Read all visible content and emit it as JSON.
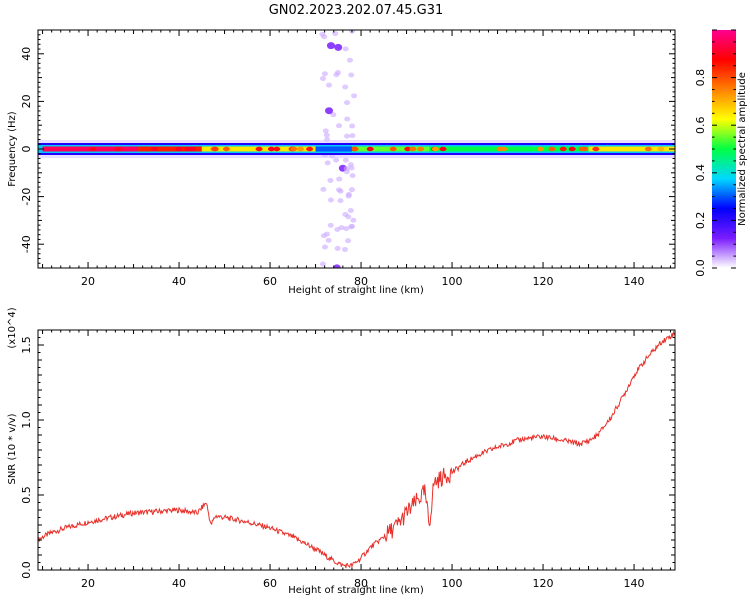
{
  "title": "GN02.2023.202.07.45.G31",
  "chart_data": [
    {
      "type": "heatmap",
      "title": "GN02.2023.202.07.45.G31",
      "xlabel": "Height of straight line (km)",
      "ylabel": "Frequency (Hz)",
      "xlim": [
        9,
        149
      ],
      "ylim": [
        -50,
        50
      ],
      "x_ticks": [
        20,
        40,
        60,
        80,
        100,
        120,
        140
      ],
      "y_ticks": [
        -40,
        -20,
        0,
        20,
        40
      ],
      "colorbar": {
        "label": "Normalized spectral amplitude",
        "range": [
          0,
          1
        ],
        "ticks": [
          "0.0",
          "0.2",
          "0.4",
          "0.6",
          "0.8"
        ],
        "colormap": [
          "#ffffff",
          "#7a1cff",
          "#0000ff",
          "#00d8ff",
          "#00ff44",
          "#ffff00",
          "#ff8000",
          "#ff0000",
          "#ff0090"
        ]
      },
      "band": {
        "center_frequency_hz": 0,
        "segments": [
          {
            "x": [
              10,
              31
            ],
            "amplitude": 0.95
          },
          {
            "x": [
              31,
              45
            ],
            "amplitude": 0.85
          },
          {
            "x": [
              45,
              70
            ],
            "amplitude": 0.65
          },
          {
            "x": [
              70,
              78
            ],
            "amplitude": 0.3
          },
          {
            "x": [
              78,
              95
            ],
            "amplitude": 0.55
          },
          {
            "x": [
              95,
              130
            ],
            "amplitude": 0.5
          },
          {
            "x": [
              130,
              149
            ],
            "amplitude": 0.65
          }
        ]
      },
      "vertical_streak": {
        "x_center_km": 75,
        "frequency_range_hz": [
          -50,
          50
        ],
        "amplitude": 0.15
      }
    },
    {
      "type": "line",
      "xlabel": "Height of straight line (km)",
      "ylabel": "SNR (10 * v/v)",
      "y_multiplier": "(x10^4)",
      "xlim": [
        9,
        149
      ],
      "ylim": [
        0,
        1.6
      ],
      "x_ticks": [
        20,
        40,
        60,
        80,
        100,
        120,
        140
      ],
      "y_ticks": [
        "0.0",
        "0.5",
        "1.0",
        "1.5"
      ],
      "color": "#e8302a",
      "series": [
        {
          "x": [
            9,
            10,
            12,
            15,
            20,
            25,
            30,
            35,
            40,
            44,
            46,
            47,
            48,
            50,
            55,
            60,
            65,
            70,
            72,
            74,
            76,
            78,
            80,
            82,
            85,
            88,
            90,
            92,
            94,
            95,
            96,
            98,
            100,
            103,
            106,
            110,
            115,
            120,
            125,
            128,
            130,
            132,
            135,
            138,
            140,
            143,
            146,
            149
          ],
          "y": [
            0.2,
            0.22,
            0.25,
            0.28,
            0.32,
            0.35,
            0.38,
            0.39,
            0.4,
            0.38,
            0.45,
            0.3,
            0.36,
            0.35,
            0.32,
            0.28,
            0.22,
            0.14,
            0.1,
            0.06,
            0.03,
            0.03,
            0.08,
            0.15,
            0.22,
            0.3,
            0.38,
            0.45,
            0.52,
            0.3,
            0.58,
            0.62,
            0.65,
            0.72,
            0.77,
            0.82,
            0.87,
            0.89,
            0.86,
            0.84,
            0.86,
            0.9,
            1.02,
            1.18,
            1.3,
            1.42,
            1.52,
            1.58
          ]
        }
      ]
    }
  ]
}
